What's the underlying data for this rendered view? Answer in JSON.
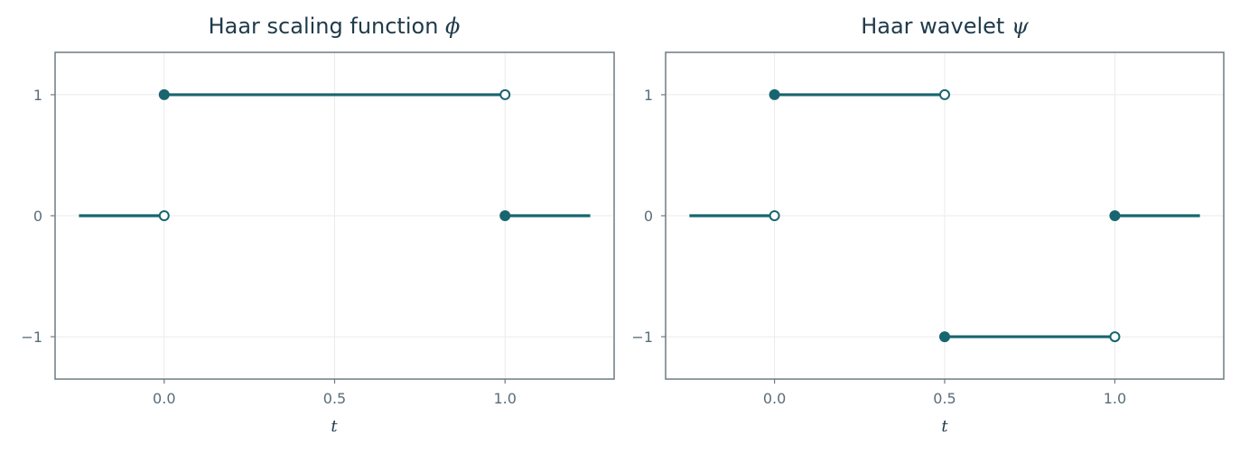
{
  "chart_data": [
    {
      "type": "line",
      "title_text": "Haar scaling function ",
      "title_symbol": "ϕ",
      "xlabel": "t",
      "ylabel": "",
      "xlim": [
        -0.32,
        1.32
      ],
      "ylim": [
        -1.35,
        1.35
      ],
      "xticks": [
        0.0,
        0.5,
        1.0
      ],
      "xtick_labels": [
        "0.0",
        "0.5",
        "1.0"
      ],
      "yticks": [
        1,
        0,
        -1
      ],
      "ytick_labels": [
        "1",
        "0",
        "−1"
      ],
      "grid": true,
      "color": "#17656f",
      "segments": [
        {
          "x": [
            -0.25,
            0.0
          ],
          "y": [
            0,
            0
          ]
        },
        {
          "x": [
            0.0,
            1.0
          ],
          "y": [
            1,
            1
          ]
        },
        {
          "x": [
            1.0,
            1.25
          ],
          "y": [
            0,
            0
          ]
        }
      ],
      "closed_points": [
        {
          "x": 0.0,
          "y": 1
        },
        {
          "x": 1.0,
          "y": 0
        }
      ],
      "open_points": [
        {
          "x": 0.0,
          "y": 0
        },
        {
          "x": 1.0,
          "y": 1
        }
      ]
    },
    {
      "type": "line",
      "title_text": "Haar wavelet ",
      "title_symbol": "ψ",
      "xlabel": "t",
      "ylabel": "",
      "xlim": [
        -0.32,
        1.32
      ],
      "ylim": [
        -1.35,
        1.35
      ],
      "xticks": [
        0.0,
        0.5,
        1.0
      ],
      "xtick_labels": [
        "0.0",
        "0.5",
        "1.0"
      ],
      "yticks": [
        1,
        0,
        -1
      ],
      "ytick_labels": [
        "1",
        "0",
        "−1"
      ],
      "grid": true,
      "color": "#17656f",
      "segments": [
        {
          "x": [
            -0.25,
            0.0
          ],
          "y": [
            0,
            0
          ]
        },
        {
          "x": [
            0.0,
            0.5
          ],
          "y": [
            1,
            1
          ]
        },
        {
          "x": [
            0.5,
            1.0
          ],
          "y": [
            -1,
            -1
          ]
        },
        {
          "x": [
            1.0,
            1.25
          ],
          "y": [
            0,
            0
          ]
        }
      ],
      "closed_points": [
        {
          "x": 0.0,
          "y": 1
        },
        {
          "x": 0.5,
          "y": -1
        },
        {
          "x": 1.0,
          "y": 0
        }
      ],
      "open_points": [
        {
          "x": 0.0,
          "y": 0
        },
        {
          "x": 0.5,
          "y": 1
        },
        {
          "x": 1.0,
          "y": -1
        }
      ]
    }
  ]
}
